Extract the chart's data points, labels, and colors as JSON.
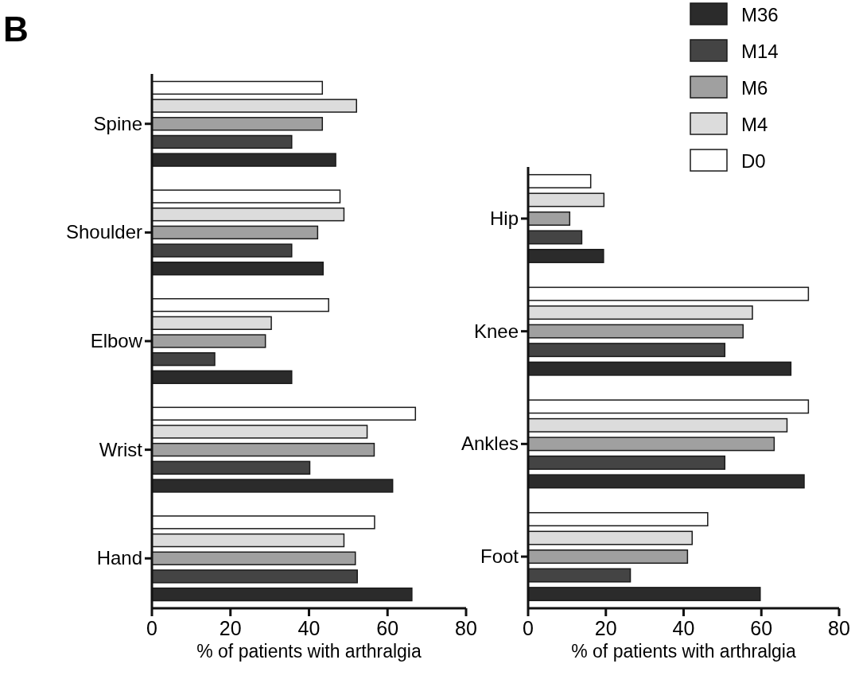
{
  "chart_data": [
    {
      "type": "bar",
      "orientation": "horizontal",
      "title": "B",
      "xlabel": "% of patients with arthralgia",
      "categories": [
        "Spine",
        "Shoulder",
        "Elbow",
        "Wrist",
        "Hand"
      ],
      "xlim": [
        0,
        80
      ],
      "xticks": [
        0,
        20,
        40,
        60,
        80
      ],
      "series": [
        {
          "color": "#ffffff",
          "values": [
            43.4,
            47.9,
            45.0,
            67.1,
            56.7
          ]
        },
        {
          "color": "#dcdcdc",
          "values": [
            52.1,
            48.9,
            30.4,
            54.8,
            48.9
          ]
        },
        {
          "color": "#a0a0a0",
          "values": [
            43.4,
            42.2,
            28.9,
            56.6,
            51.8
          ]
        },
        {
          "color": "#444444",
          "values": [
            35.6,
            35.6,
            16.0,
            40.2,
            52.3
          ]
        },
        {
          "color": "#2b2b2b",
          "values": [
            46.8,
            43.6,
            35.6,
            61.3,
            66.2
          ]
        }
      ]
    },
    {
      "type": "bar",
      "orientation": "horizontal",
      "xlabel": "% of patients with arthralgia",
      "categories": [
        "Hip",
        "Knee",
        "Ankles",
        "Foot"
      ],
      "xlim": [
        0,
        80
      ],
      "xticks": [
        0,
        20,
        40,
        60,
        80
      ],
      "legend": "top right",
      "series": [
        {
          "name": "D0",
          "color": "#ffffff",
          "values": [
            16.1,
            72.1,
            72.1,
            46.2
          ]
        },
        {
          "name": "M4",
          "color": "#dcdcdc",
          "values": [
            19.5,
            57.7,
            66.6,
            42.2
          ]
        },
        {
          "name": "M6",
          "color": "#a0a0a0",
          "values": [
            10.7,
            55.3,
            63.3,
            41.0
          ]
        },
        {
          "name": "M14",
          "color": "#444444",
          "values": [
            13.8,
            50.6,
            50.6,
            26.3
          ]
        },
        {
          "name": "M36",
          "color": "#2b2b2b",
          "values": [
            19.4,
            67.6,
            71.0,
            59.7
          ]
        }
      ]
    }
  ]
}
